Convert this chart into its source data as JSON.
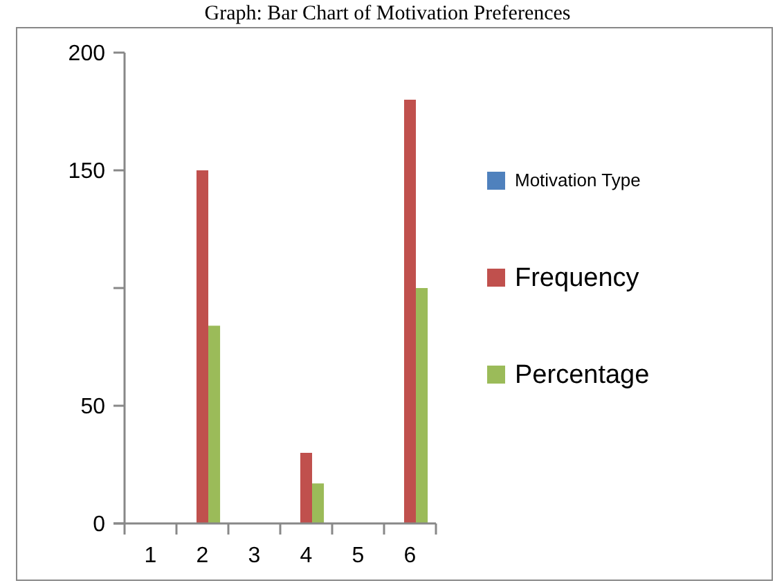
{
  "chart_data": {
    "type": "bar",
    "title": "Graph: Bar Chart of Motivation Preferences",
    "categories": [
      "1",
      "2",
      "3",
      "4",
      "5",
      "6"
    ],
    "series": [
      {
        "name": "Motivation Type",
        "color": "#4f81bd",
        "values": [
          0,
          0,
          0,
          0,
          0,
          0
        ]
      },
      {
        "name": "Frequency",
        "color": "#c0504d",
        "values": [
          0,
          150,
          0,
          30,
          0,
          180
        ]
      },
      {
        "name": "Percentage",
        "color": "#9bbb59",
        "values": [
          0,
          84,
          0,
          17,
          0,
          100
        ]
      }
    ],
    "ylim": [
      0,
      200
    ],
    "yticks": [
      0,
      50,
      {
        "value": 100,
        "label": null
      },
      150,
      200
    ],
    "grid": false,
    "legend": "right"
  }
}
